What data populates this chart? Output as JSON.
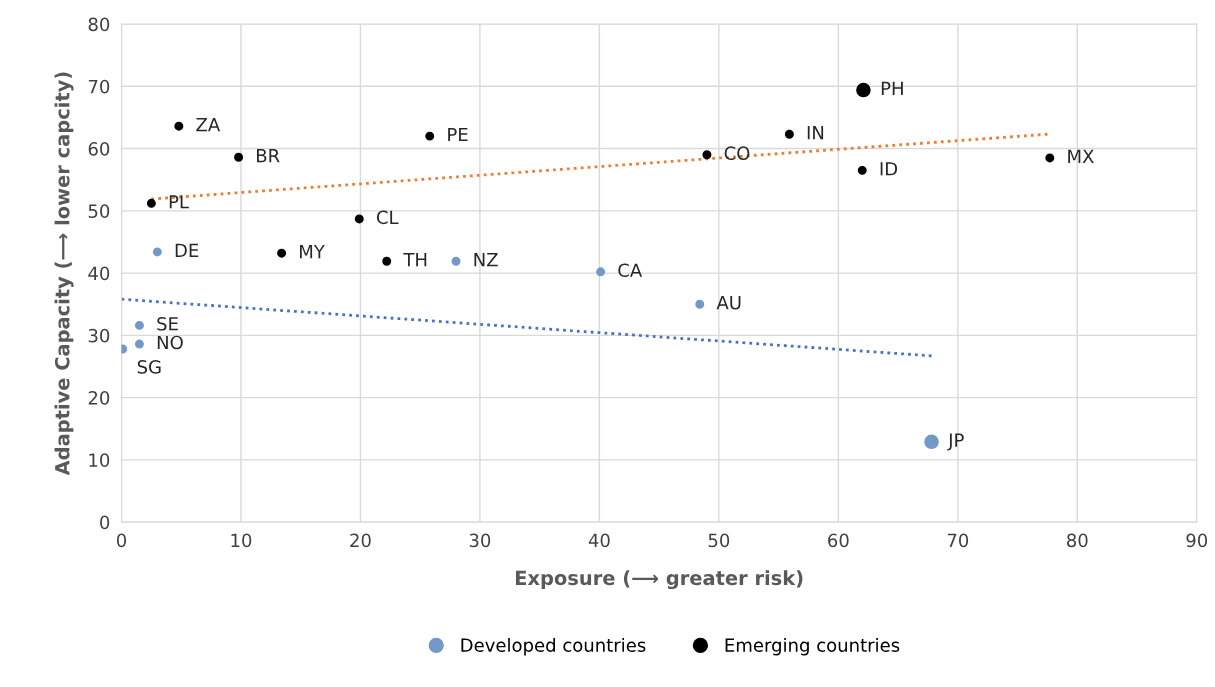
{
  "chart_data": {
    "type": "bubble",
    "xlabel": "Exposure (⟶ greater risk)",
    "ylabel": "Adaptive Capacity (⟶ lower capcity)",
    "xlim": [
      0,
      90
    ],
    "xticks": [
      0,
      10,
      20,
      30,
      40,
      50,
      60,
      70,
      80,
      90
    ],
    "ylim": [
      0,
      80
    ],
    "yticks": [
      0,
      10,
      20,
      30,
      40,
      50,
      60,
      70,
      80
    ],
    "grid": true,
    "legend": "bottom",
    "series": [
      {
        "name": "Developed countries",
        "color": "#7399c6",
        "x": [
          3.0,
          28.0,
          40.1,
          48.4,
          1.5,
          1.5,
          0.1,
          67.8
        ],
        "values": [
          43.4,
          41.9,
          40.2,
          35.0,
          31.6,
          28.6,
          27.8,
          12.9
        ],
        "sizes": [
          0.33,
          0.33,
          0.33,
          0.33,
          0.33,
          0.33,
          0.33,
          1
        ]
      },
      {
        "name": "Emerging countries",
        "color": "#000000",
        "x": [
          4.8,
          9.8,
          25.8,
          2.5,
          19.9,
          13.4,
          22.2,
          49.0,
          55.9,
          62.1,
          62.0,
          77.7
        ],
        "values": [
          63.6,
          58.6,
          62.0,
          51.2,
          48.7,
          43.2,
          41.9,
          59.0,
          62.3,
          69.4,
          56.5,
          58.5
        ],
        "sizes": [
          0.33,
          0.33,
          0.33,
          0.33,
          0.33,
          0.33,
          0.33,
          0.33,
          0.33,
          1,
          0.33,
          0.33
        ]
      },
      {
        "type": "line",
        "color": "#ed7d31",
        "line_style": "dotted",
        "x": [
          2.5,
          77.5
        ],
        "values": [
          51.9,
          62.3
        ]
      },
      {
        "type": "line",
        "color": "#4472c4",
        "line_style": "dotted",
        "x": [
          0,
          67.8
        ],
        "values": [
          35.8,
          26.7
        ]
      }
    ],
    "annotations": [
      {
        "text": "DE",
        "x": 3.0,
        "y": 43.4
      },
      {
        "text": "NZ",
        "x": 28.0,
        "y": 41.9
      },
      {
        "text": "CA",
        "x": 40.1,
        "y": 40.2
      },
      {
        "text": "AU",
        "x": 48.4,
        "y": 35.0
      },
      {
        "text": "SE",
        "x": 1.5,
        "y": 31.6
      },
      {
        "text": "NO",
        "x": 1.5,
        "y": 28.6
      },
      {
        "text": "SG",
        "x": 0.1,
        "y": 27.8
      },
      {
        "text": "JP",
        "x": 67.8,
        "y": 12.9
      },
      {
        "text": "ZA",
        "x": 4.8,
        "y": 63.6
      },
      {
        "text": "BR",
        "x": 9.8,
        "y": 58.6
      },
      {
        "text": "PE",
        "x": 25.8,
        "y": 62.0
      },
      {
        "text": "PL",
        "x": 2.5,
        "y": 51.2
      },
      {
        "text": "CL",
        "x": 19.9,
        "y": 48.7
      },
      {
        "text": "MY",
        "x": 13.4,
        "y": 43.2
      },
      {
        "text": "TH",
        "x": 22.2,
        "y": 41.9
      },
      {
        "text": "CO",
        "x": 49.0,
        "y": 59.0
      },
      {
        "text": "IN",
        "x": 55.9,
        "y": 62.3
      },
      {
        "text": "PH",
        "x": 62.1,
        "y": 69.4
      },
      {
        "text": "ID",
        "x": 62.0,
        "y": 56.5
      },
      {
        "text": "MX",
        "x": 77.7,
        "y": 58.5
      }
    ]
  }
}
